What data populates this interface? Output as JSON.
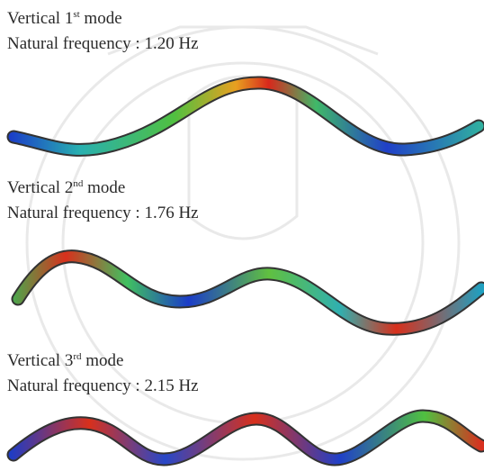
{
  "modes": [
    {
      "title": {
        "prefix": "Vertical 1",
        "sup": "st",
        "suffix": " mode"
      },
      "frequency": "Natural frequency : 1.20 Hz"
    },
    {
      "title": {
        "prefix": "Vertical 2",
        "sup": "nd",
        "suffix": " mode"
      },
      "frequency": "Natural frequency : 1.76 Hz"
    },
    {
      "title": {
        "prefix": "Vertical 3",
        "sup": "rd",
        "suffix": " mode"
      },
      "frequency": "Natural frequency : 2.15 Hz"
    }
  ]
}
